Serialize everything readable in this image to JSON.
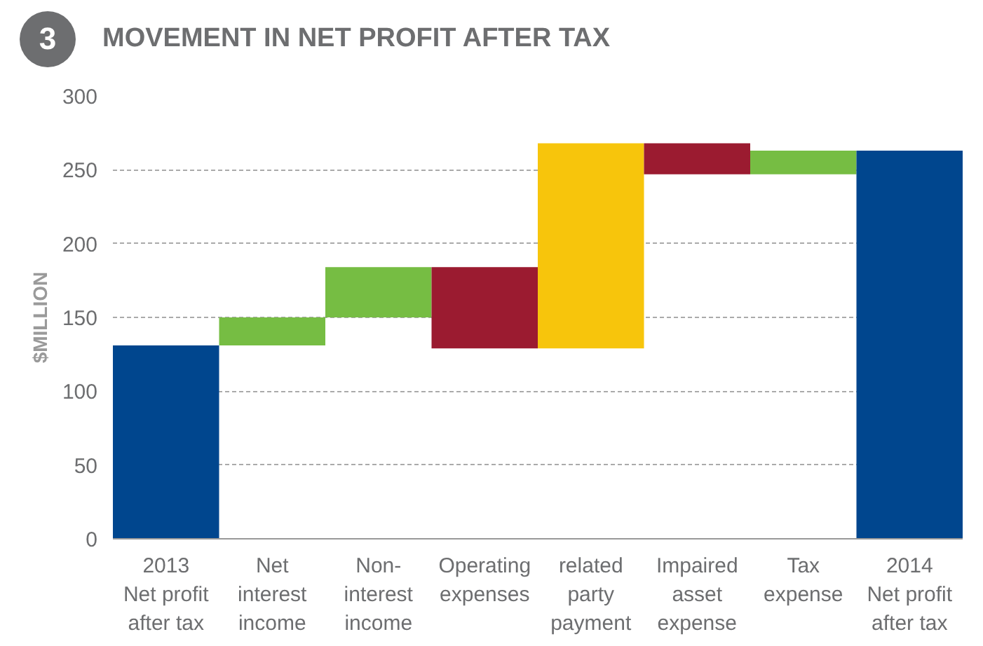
{
  "chart_data": {
    "type": "bar",
    "title": "MOVEMENT IN NET PROFIT AFTER TAX",
    "ylabel": "$MILLION",
    "annotations": [
      "3"
    ],
    "categories": [
      "2013\nNet profit\nafter tax",
      "Net\ninterest\nincome",
      "Non-\ninterest\nincome",
      "Operating\nexpenses",
      "related\nparty\npayment",
      "Impaired\nasset\nexpense",
      "Tax\nexpense",
      "2014\nNet profit\nafter tax"
    ],
    "values": [
      131,
      19,
      34,
      -55,
      139,
      -21,
      16,
      263
    ],
    "base": [
      0,
      131,
      150,
      184,
      129,
      268,
      247,
      0
    ],
    "colors": [
      "#00468e",
      "#76bd43",
      "#76bd43",
      "#9b1b30",
      "#f7c50c",
      "#9b1b30",
      "#76bd43",
      "#00468e"
    ],
    "ylim": [
      0,
      300
    ],
    "yticks": [
      0,
      50,
      100,
      150,
      200,
      250,
      300
    ],
    "grid": "y"
  }
}
